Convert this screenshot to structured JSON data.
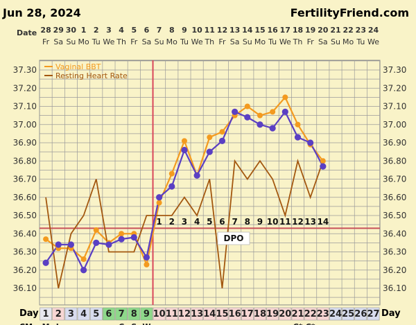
{
  "header": {
    "date": "Jun 28, 2024",
    "site": "FertilityFriend.com"
  },
  "labels": {
    "date_row": "Date",
    "day_row": "Day",
    "dpo": "DPO",
    "bottom_row_clip": "CM"
  },
  "colors": {
    "background": "#f9f3c8",
    "grid": "#9a9a9a",
    "bbt": "#f39a1f",
    "hr": "#a3570f",
    "temp": "#5a3fc3",
    "ovulation_line": "#d9465a",
    "coverline": "#c8505a",
    "day_green": "#8ed88a",
    "day_pink": "#f7d6d3",
    "day_blue": "#d8dcee",
    "day_light": "#e6e6ee"
  },
  "chart_data": {
    "type": "line",
    "title": "",
    "ylabel": "",
    "ylim": [
      36.05,
      37.35
    ],
    "yticks": [
      "36.10",
      "36.20",
      "36.30",
      "36.40",
      "36.50",
      "36.60",
      "36.70",
      "36.80",
      "36.90",
      "37.00",
      "37.10",
      "37.20",
      "37.30"
    ],
    "dates": [
      "28",
      "29",
      "30",
      "1",
      "2",
      "3",
      "4",
      "5",
      "6",
      "7",
      "8",
      "9",
      "10",
      "11",
      "12",
      "13",
      "14",
      "15",
      "16",
      "17",
      "18",
      "19",
      "20",
      "21",
      "22",
      "23",
      "24"
    ],
    "weekdays": [
      "Fr",
      "Sa",
      "Su",
      "Mo",
      "Tu",
      "We",
      "Th",
      "Fr",
      "Sa",
      "Su",
      "Mo",
      "Tu",
      "We",
      "Th",
      "Fr",
      "Sa",
      "Su",
      "Mo",
      "Tu",
      "We",
      "Th",
      "Fr",
      "Sa",
      "Su",
      "Mo",
      "Tu",
      "We"
    ],
    "cycle_days": [
      "1",
      "2",
      "3",
      "4",
      "5",
      "6",
      "7",
      "8",
      "9",
      "10",
      "11",
      "12",
      "13",
      "14",
      "15",
      "16",
      "17",
      "18",
      "19",
      "20",
      "21",
      "22",
      "23",
      "24",
      "25",
      "26",
      "27"
    ],
    "cycle_day_kinds": [
      "light",
      "pink",
      "blue",
      "blue",
      "blue",
      "green",
      "green",
      "green",
      "green",
      "pink",
      "pink",
      "pink",
      "pink",
      "pink",
      "pink",
      "pink",
      "pink",
      "pink",
      "pink",
      "pink",
      "pink",
      "pink",
      "pink",
      "blue",
      "blue",
      "blue",
      "blue"
    ],
    "dpo_labels": [
      "1",
      "2",
      "3",
      "4",
      "5",
      "6",
      "7",
      "8",
      "9",
      "10",
      "11",
      "12",
      "13",
      "14"
    ],
    "dpo_start_index": 9,
    "coverline": 36.43,
    "ovulation_index": 8,
    "legend": [
      "Vaginal BBT",
      "Resting Heart Rate"
    ],
    "series": [
      {
        "name": "Vaginal BBT",
        "values": [
          36.37,
          36.32,
          36.32,
          36.26,
          36.42,
          36.35,
          36.4,
          36.4,
          36.23,
          36.57,
          36.73,
          36.91,
          36.72,
          36.93,
          36.96,
          37.05,
          37.1,
          37.05,
          37.07,
          37.15,
          37.0,
          36.89,
          36.8,
          null,
          null,
          null,
          null
        ]
      },
      {
        "name": "Resting Heart Rate",
        "values": [
          36.6,
          36.1,
          36.4,
          36.5,
          36.7,
          36.3,
          36.3,
          36.3,
          36.5,
          36.5,
          36.5,
          36.6,
          36.5,
          36.7,
          36.1,
          36.8,
          36.7,
          36.8,
          36.7,
          36.5,
          36.8,
          36.6,
          36.8,
          null,
          null,
          null,
          null
        ]
      },
      {
        "name": "",
        "values": [
          36.24,
          36.34,
          36.34,
          36.2,
          36.35,
          36.34,
          36.37,
          36.38,
          36.27,
          36.6,
          36.66,
          36.86,
          36.72,
          36.85,
          36.91,
          37.07,
          37.04,
          37.0,
          36.98,
          37.07,
          36.93,
          36.9,
          36.77,
          null,
          null,
          null,
          null
        ]
      }
    ],
    "bottom_row_marks": [
      "M",
      "L",
      "•",
      "",
      "",
      "",
      "C",
      "S",
      "W",
      "",
      "",
      "",
      "",
      "",
      "",
      "",
      "",
      "",
      "",
      "",
      "C*",
      "C*",
      "",
      "",
      "",
      "",
      ""
    ]
  }
}
